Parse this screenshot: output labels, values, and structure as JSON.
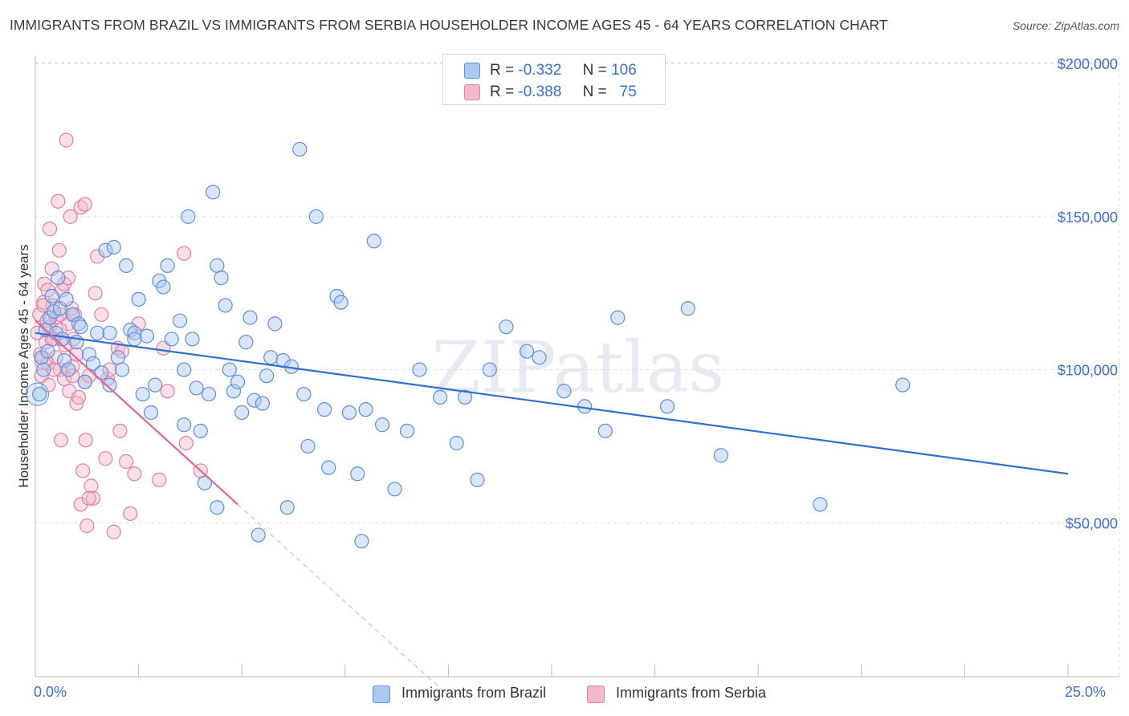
{
  "chart_data": {
    "type": "scatter",
    "title": "IMMIGRANTS FROM BRAZIL VS IMMIGRANTS FROM SERBIA HOUSEHOLDER INCOME AGES 45 - 64 YEARS CORRELATION CHART",
    "source": "Source: ZipAtlas.com",
    "xlabel": "",
    "ylabel": "Householder Income Ages 45 - 64 years",
    "xlim": [
      0,
      25
    ],
    "ylim": [
      0,
      210000
    ],
    "x_tick_labels": [
      "0.0%",
      "25.0%"
    ],
    "y_ticks": [
      50000,
      100000,
      150000,
      200000
    ],
    "y_tick_labels": [
      "$50,000",
      "$100,000",
      "$150,000",
      "$200,000"
    ],
    "watermark": "ZIPatlas",
    "colors": {
      "brazil_fill": "#aac8f0",
      "brazil_stroke": "#5b8fd8",
      "brazil_line": "#2f6fd0",
      "serbia_fill": "#f4b8cc",
      "serbia_stroke": "#e07fa0",
      "serbia_line": "#e06690",
      "axis_text": "#3a6fd0",
      "grid": "#dddddd"
    },
    "legend": {
      "rows": [
        {
          "r_label": "R =",
          "r_value": "-0.332",
          "n_label": "N =",
          "n_value": "106"
        },
        {
          "r_label": "R =",
          "r_value": "-0.388",
          "n_label": "N =",
          "n_value": "75"
        }
      ],
      "series_names": [
        "Immigrants from Brazil",
        "Immigrants from Serbia"
      ]
    },
    "series": [
      {
        "name": "Immigrants from Brazil",
        "trend": {
          "x0": 0,
          "y0": 112000,
          "x1": 25,
          "y1": 66000
        },
        "points": [
          [
            0.1,
            92000
          ],
          [
            0.15,
            104000
          ],
          [
            0.2,
            100000
          ],
          [
            0.25,
            113000
          ],
          [
            0.3,
            106000
          ],
          [
            0.35,
            117000
          ],
          [
            0.4,
            124000
          ],
          [
            0.45,
            119000
          ],
          [
            0.5,
            112000
          ],
          [
            0.55,
            130000
          ],
          [
            0.6,
            120000
          ],
          [
            0.65,
            110000
          ],
          [
            0.7,
            103000
          ],
          [
            0.75,
            123000
          ],
          [
            0.8,
            100000
          ],
          [
            0.9,
            118000
          ],
          [
            1.0,
            109000
          ],
          [
            1.05,
            115000
          ],
          [
            1.1,
            114000
          ],
          [
            1.2,
            96000
          ],
          [
            1.3,
            105000
          ],
          [
            1.4,
            102000
          ],
          [
            1.5,
            112000
          ],
          [
            1.6,
            99000
          ],
          [
            1.7,
            139000
          ],
          [
            1.8,
            112000
          ],
          [
            1.9,
            140000
          ],
          [
            2.0,
            104000
          ],
          [
            2.1,
            100000
          ],
          [
            2.2,
            134000
          ],
          [
            2.3,
            113000
          ],
          [
            2.4,
            112000
          ],
          [
            2.5,
            123000
          ],
          [
            2.6,
            92000
          ],
          [
            2.7,
            111000
          ],
          [
            2.8,
            86000
          ],
          [
            2.9,
            95000
          ],
          [
            3.0,
            129000
          ],
          [
            3.1,
            127000
          ],
          [
            3.2,
            134000
          ],
          [
            3.3,
            110000
          ],
          [
            3.5,
            116000
          ],
          [
            3.6,
            82000
          ],
          [
            3.7,
            150000
          ],
          [
            3.8,
            110000
          ],
          [
            3.9,
            94000
          ],
          [
            4.0,
            80000
          ],
          [
            4.1,
            63000
          ],
          [
            4.2,
            92000
          ],
          [
            4.3,
            158000
          ],
          [
            4.4,
            134000
          ],
          [
            4.5,
            130000
          ],
          [
            4.6,
            121000
          ],
          [
            4.7,
            100000
          ],
          [
            4.8,
            93000
          ],
          [
            4.9,
            96000
          ],
          [
            5.0,
            86000
          ],
          [
            5.1,
            109000
          ],
          [
            5.2,
            117000
          ],
          [
            5.3,
            90000
          ],
          [
            5.5,
            89000
          ],
          [
            5.6,
            98000
          ],
          [
            5.7,
            104000
          ],
          [
            5.8,
            115000
          ],
          [
            6.0,
            103000
          ],
          [
            6.1,
            55000
          ],
          [
            6.2,
            101000
          ],
          [
            6.4,
            172000
          ],
          [
            6.5,
            92000
          ],
          [
            6.6,
            75000
          ],
          [
            6.8,
            150000
          ],
          [
            7.0,
            87000
          ],
          [
            7.1,
            68000
          ],
          [
            7.3,
            124000
          ],
          [
            7.4,
            122000
          ],
          [
            7.6,
            86000
          ],
          [
            7.8,
            66000
          ],
          [
            8.0,
            87000
          ],
          [
            8.2,
            142000
          ],
          [
            8.4,
            82000
          ],
          [
            8.7,
            61000
          ],
          [
            9.0,
            80000
          ],
          [
            9.3,
            100000
          ],
          [
            9.8,
            91000
          ],
          [
            10.2,
            76000
          ],
          [
            10.4,
            91000
          ],
          [
            10.7,
            64000
          ],
          [
            11.0,
            100000
          ],
          [
            11.4,
            114000
          ],
          [
            11.9,
            106000
          ],
          [
            12.2,
            104000
          ],
          [
            12.8,
            93000
          ],
          [
            13.3,
            88000
          ],
          [
            13.8,
            80000
          ],
          [
            14.1,
            117000
          ],
          [
            15.3,
            88000
          ],
          [
            15.8,
            120000
          ],
          [
            16.6,
            72000
          ],
          [
            19.0,
            56000
          ],
          [
            21.0,
            95000
          ],
          [
            5.4,
            46000
          ],
          [
            7.9,
            44000
          ],
          [
            4.4,
            55000
          ],
          [
            3.6,
            100000
          ],
          [
            2.4,
            110000
          ],
          [
            1.8,
            95000
          ]
        ]
      },
      {
        "name": "Immigrants from Serbia",
        "trend": {
          "x0": 0,
          "y0": 116000,
          "x1": 4.9,
          "y1": 56000,
          "dash_to_x": 10.0
        },
        "points": [
          [
            0.05,
            112000
          ],
          [
            0.1,
            118000
          ],
          [
            0.12,
            105000
          ],
          [
            0.15,
            98000
          ],
          [
            0.2,
            122000
          ],
          [
            0.22,
            128000
          ],
          [
            0.25,
            109000
          ],
          [
            0.28,
            116000
          ],
          [
            0.3,
            102000
          ],
          [
            0.32,
            95000
          ],
          [
            0.35,
            146000
          ],
          [
            0.4,
            133000
          ],
          [
            0.42,
            121000
          ],
          [
            0.45,
            110000
          ],
          [
            0.5,
            117000
          ],
          [
            0.55,
            155000
          ],
          [
            0.58,
            139000
          ],
          [
            0.6,
            100000
          ],
          [
            0.62,
            77000
          ],
          [
            0.65,
            126000
          ],
          [
            0.7,
            128000
          ],
          [
            0.72,
            108000
          ],
          [
            0.75,
            175000
          ],
          [
            0.8,
            115000
          ],
          [
            0.82,
            93000
          ],
          [
            0.85,
            150000
          ],
          [
            0.88,
            120000
          ],
          [
            0.9,
            101000
          ],
          [
            0.92,
            110000
          ],
          [
            0.95,
            118000
          ],
          [
            1.0,
            89000
          ],
          [
            1.05,
            91000
          ],
          [
            1.1,
            153000
          ],
          [
            1.15,
            67000
          ],
          [
            1.2,
            96000
          ],
          [
            1.22,
            77000
          ],
          [
            1.25,
            49000
          ],
          [
            1.3,
            98000
          ],
          [
            1.35,
            62000
          ],
          [
            1.4,
            58000
          ],
          [
            1.45,
            125000
          ],
          [
            1.5,
            137000
          ],
          [
            1.6,
            118000
          ],
          [
            1.7,
            71000
          ],
          [
            1.75,
            97000
          ],
          [
            1.8,
            100000
          ],
          [
            1.9,
            47000
          ],
          [
            2.0,
            107000
          ],
          [
            2.05,
            80000
          ],
          [
            2.1,
            106000
          ],
          [
            2.2,
            70000
          ],
          [
            2.3,
            53000
          ],
          [
            2.4,
            66000
          ],
          [
            2.5,
            115000
          ],
          [
            3.0,
            64000
          ],
          [
            3.1,
            107000
          ],
          [
            3.2,
            93000
          ],
          [
            3.6,
            138000
          ],
          [
            3.65,
            76000
          ],
          [
            4.0,
            67000
          ],
          [
            0.35,
            114000
          ],
          [
            0.5,
            104000
          ],
          [
            0.6,
            113000
          ],
          [
            0.8,
            130000
          ],
          [
            1.0,
            105000
          ],
          [
            0.45,
            100000
          ],
          [
            0.7,
            97000
          ],
          [
            0.9,
            98000
          ],
          [
            1.2,
            154000
          ],
          [
            0.3,
            126000
          ],
          [
            1.1,
            56000
          ],
          [
            1.3,
            58000
          ],
          [
            0.2,
            121000
          ],
          [
            0.4,
            110000
          ],
          [
            0.6,
            118000
          ]
        ]
      }
    ]
  }
}
